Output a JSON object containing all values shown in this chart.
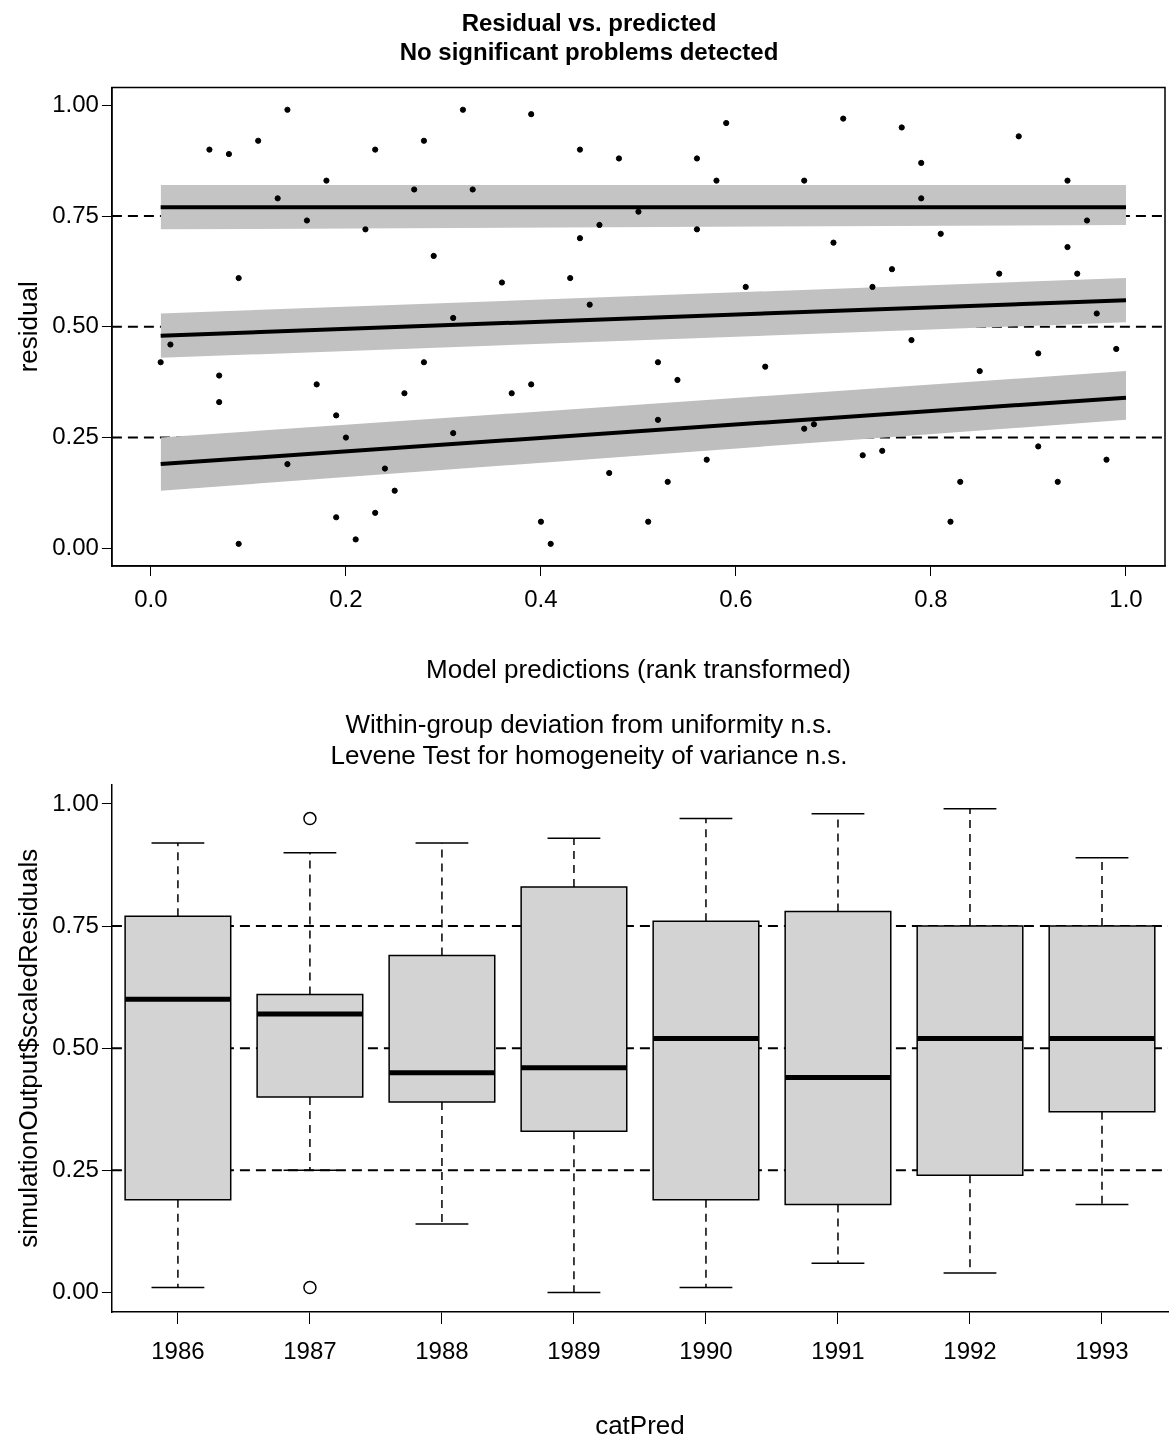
{
  "chart_data": [
    {
      "type": "scatter",
      "title": "Residual vs. predicted",
      "subtitle": "No significant problems detected",
      "xlabel": "Model predictions (rank transformed)",
      "ylabel": "residual",
      "xlim": [
        -0.04,
        1.04
      ],
      "ylim": [
        -0.04,
        1.04
      ],
      "xticks": [
        {
          "value": 0,
          "label": "0.0"
        },
        {
          "value": 0.2,
          "label": "0.2"
        },
        {
          "value": 0.4,
          "label": "0.4"
        },
        {
          "value": 0.6,
          "label": "0.6"
        },
        {
          "value": 0.8,
          "label": "0.8"
        },
        {
          "value": 1,
          "label": "1.0"
        }
      ],
      "yticks": [
        {
          "value": 0,
          "label": "0.00"
        },
        {
          "value": 0.25,
          "label": "0.25"
        },
        {
          "value": 0.5,
          "label": "0.50"
        },
        {
          "value": 0.75,
          "label": "0.75"
        },
        {
          "value": 1,
          "label": "1.00"
        }
      ],
      "grid": false,
      "legend": false,
      "ref_lines": [
        {
          "axis": "y",
          "value": 0.25,
          "line_style": "dashed",
          "color": "#000000"
        },
        {
          "axis": "y",
          "value": 0.5,
          "line_style": "dashed",
          "color": "#000000"
        },
        {
          "axis": "y",
          "value": 0.75,
          "line_style": "dashed",
          "color": "#000000"
        }
      ],
      "series": [
        {
          "type": "scatter",
          "color": "#000000",
          "marker": "circle",
          "x": [
            0.01,
            0.02,
            0.06,
            0.08,
            0.07,
            0.07,
            0.09,
            0.09,
            0.11,
            0.13,
            0.14,
            0.14,
            0.18,
            0.16,
            0.17,
            0.19,
            0.19,
            0.2,
            0.21,
            0.22,
            0.23,
            0.23,
            0.24,
            0.25,
            0.26,
            0.27,
            0.28,
            0.28,
            0.29,
            0.31,
            0.31,
            0.32,
            0.33,
            0.36,
            0.37,
            0.39,
            0.39,
            0.4,
            0.41,
            0.43,
            0.44,
            0.44,
            0.45,
            0.46,
            0.47,
            0.48,
            0.59,
            0.56,
            0.58,
            0.5,
            0.56,
            0.61,
            0.52,
            0.54,
            0.52,
            0.57,
            0.53,
            0.51,
            0.71,
            0.67,
            0.77,
            0.79,
            0.79,
            0.7,
            0.81,
            0.74,
            0.76,
            0.87,
            0.95,
            0.94,
            0.89,
            0.94,
            0.96,
            0.63,
            0.68,
            0.67,
            0.73,
            0.75,
            0.78,
            0.85,
            0.91,
            0.97,
            0.99,
            0.91,
            0.98,
            0.83,
            0.93,
            0.82
          ],
          "values": [
            0.42,
            0.46,
            0.9,
            0.89,
            0.33,
            0.39,
            0.61,
            0.01,
            0.92,
            0.79,
            0.99,
            0.19,
            0.83,
            0.74,
            0.37,
            0.07,
            0.3,
            0.25,
            0.02,
            0.72,
            0.08,
            0.9,
            0.18,
            0.13,
            0.35,
            0.81,
            0.92,
            0.42,
            0.66,
            0.26,
            0.52,
            0.99,
            0.81,
            0.6,
            0.35,
            0.37,
            0.98,
            0.06,
            0.01,
            0.61,
            0.9,
            0.7,
            0.55,
            0.73,
            0.17,
            0.88,
            0.96,
            0.88,
            0.83,
            0.76,
            0.72,
            0.59,
            0.42,
            0.38,
            0.29,
            0.2,
            0.15,
            0.06,
            0.97,
            0.83,
            0.95,
            0.87,
            0.79,
            0.69,
            0.71,
            0.59,
            0.63,
            0.62,
            0.62,
            0.68,
            0.93,
            0.83,
            0.74,
            0.41,
            0.28,
            0.27,
            0.21,
            0.22,
            0.47,
            0.4,
            0.44,
            0.53,
            0.45,
            0.23,
            0.2,
            0.15,
            0.15,
            0.06
          ]
        },
        {
          "type": "line",
          "color": "#000000",
          "x": [
            0.01,
            1.0
          ],
          "values": [
            0.77,
            0.77
          ],
          "lower": [
            0.72,
            0.73
          ],
          "upper": [
            0.82,
            0.82
          ]
        },
        {
          "type": "line",
          "color": "#000000",
          "x": [
            0.01,
            1.0
          ],
          "values": [
            0.48,
            0.56
          ],
          "lower": [
            0.43,
            0.51
          ],
          "upper": [
            0.53,
            0.61
          ]
        },
        {
          "type": "line",
          "color": "#000000",
          "x": [
            0.01,
            1.0
          ],
          "values": [
            0.19,
            0.34
          ],
          "lower": [
            0.13,
            0.29
          ],
          "upper": [
            0.25,
            0.4
          ]
        }
      ]
    },
    {
      "type": "box",
      "title": "Within-group deviation from uniformity n.s.",
      "subtitle": "Levene Test for homogeneity of variance n.s.",
      "xlabel": "catPred",
      "ylabel": "simulationOutput$scaledResiduals",
      "categories": [
        "1986",
        "1987",
        "1988",
        "1989",
        "1990",
        "1991",
        "1992",
        "1993"
      ],
      "ylim": [
        -0.04,
        1.04
      ],
      "yticks": [
        {
          "value": 0,
          "label": "0.00"
        },
        {
          "value": 0.25,
          "label": "0.25"
        },
        {
          "value": 0.5,
          "label": "0.50"
        },
        {
          "value": 0.75,
          "label": "0.75"
        },
        {
          "value": 1,
          "label": "1.00"
        }
      ],
      "grid": false,
      "legend": false,
      "color": "#d3d3d3",
      "ref_lines": [
        {
          "axis": "y",
          "value": 0.25,
          "line_style": "dashed",
          "color": "#000000"
        },
        {
          "axis": "y",
          "value": 0.5,
          "line_style": "dashed",
          "color": "#000000"
        },
        {
          "axis": "y",
          "value": 0.75,
          "line_style": "dashed",
          "color": "#000000"
        }
      ],
      "boxes": [
        {
          "low": 0.01,
          "q1": 0.19,
          "median": 0.6,
          "q3": 0.77,
          "high": 0.92
        },
        {
          "low": 0.25,
          "q1": 0.4,
          "median": 0.57,
          "q3": 0.61,
          "high": 0.9,
          "outliers": [
            0.97,
            0.01
          ]
        },
        {
          "low": 0.14,
          "q1": 0.39,
          "median": 0.45,
          "q3": 0.69,
          "high": 0.92
        },
        {
          "low": 0.0,
          "q1": 0.33,
          "median": 0.46,
          "q3": 0.83,
          "high": 0.93
        },
        {
          "low": 0.01,
          "q1": 0.19,
          "median": 0.52,
          "q3": 0.76,
          "high": 0.97
        },
        {
          "low": 0.06,
          "q1": 0.18,
          "median": 0.44,
          "q3": 0.78,
          "high": 0.98
        },
        {
          "low": 0.04,
          "q1": 0.24,
          "median": 0.52,
          "q3": 0.75,
          "high": 0.99
        },
        {
          "low": 0.18,
          "q1": 0.37,
          "median": 0.52,
          "q3": 0.75,
          "high": 0.89
        }
      ]
    }
  ]
}
